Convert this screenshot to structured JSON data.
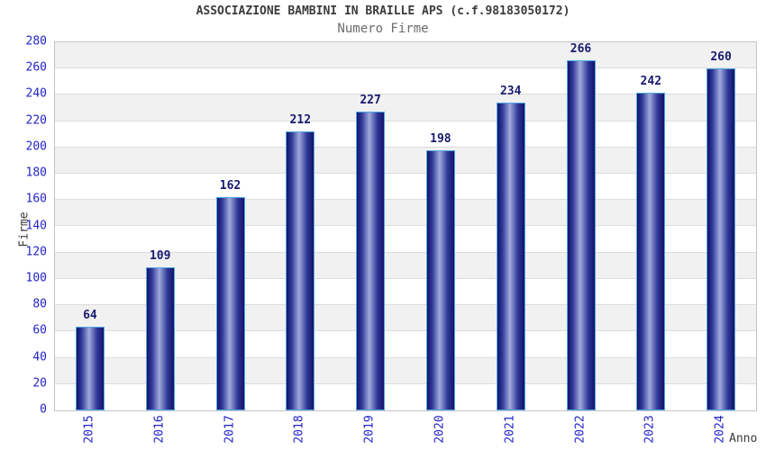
{
  "chart_data": {
    "type": "bar",
    "title": "ASSOCIAZIONE BAMBINI IN BRAILLE APS (c.f.98183050172)",
    "subtitle": "Numero Firme",
    "xlabel": "Anno",
    "ylabel": "Firme",
    "categories": [
      "2015",
      "2016",
      "2017",
      "2018",
      "2019",
      "2020",
      "2021",
      "2022",
      "2023",
      "2024"
    ],
    "values": [
      64,
      109,
      162,
      212,
      227,
      198,
      234,
      266,
      242,
      260
    ],
    "ylim": [
      0,
      280
    ],
    "ytick_step": 20,
    "yticks": [
      0,
      20,
      40,
      60,
      80,
      100,
      120,
      140,
      160,
      180,
      200,
      220,
      240,
      260,
      280
    ],
    "grid": "horizontal-alternating-bands",
    "legend": "none",
    "colors": {
      "tick_label": "#2323c8",
      "value_label": "#1a1a70",
      "title": "#3b3b3b",
      "subtitle": "#6b6b6b",
      "axis_title": "#3b3b3b",
      "band_gray": "#f1f1f1",
      "band_white": "#ffffff",
      "grid_line": "#dcdcdc",
      "plot_border": "#c4c4c4",
      "bar_border": "#50a8e6",
      "bar_gradient_dark": "#14146a",
      "bar_gradient_mid": "#2e3796",
      "bar_gradient_light": "#a0aadc",
      "background": "#ffffff"
    }
  }
}
